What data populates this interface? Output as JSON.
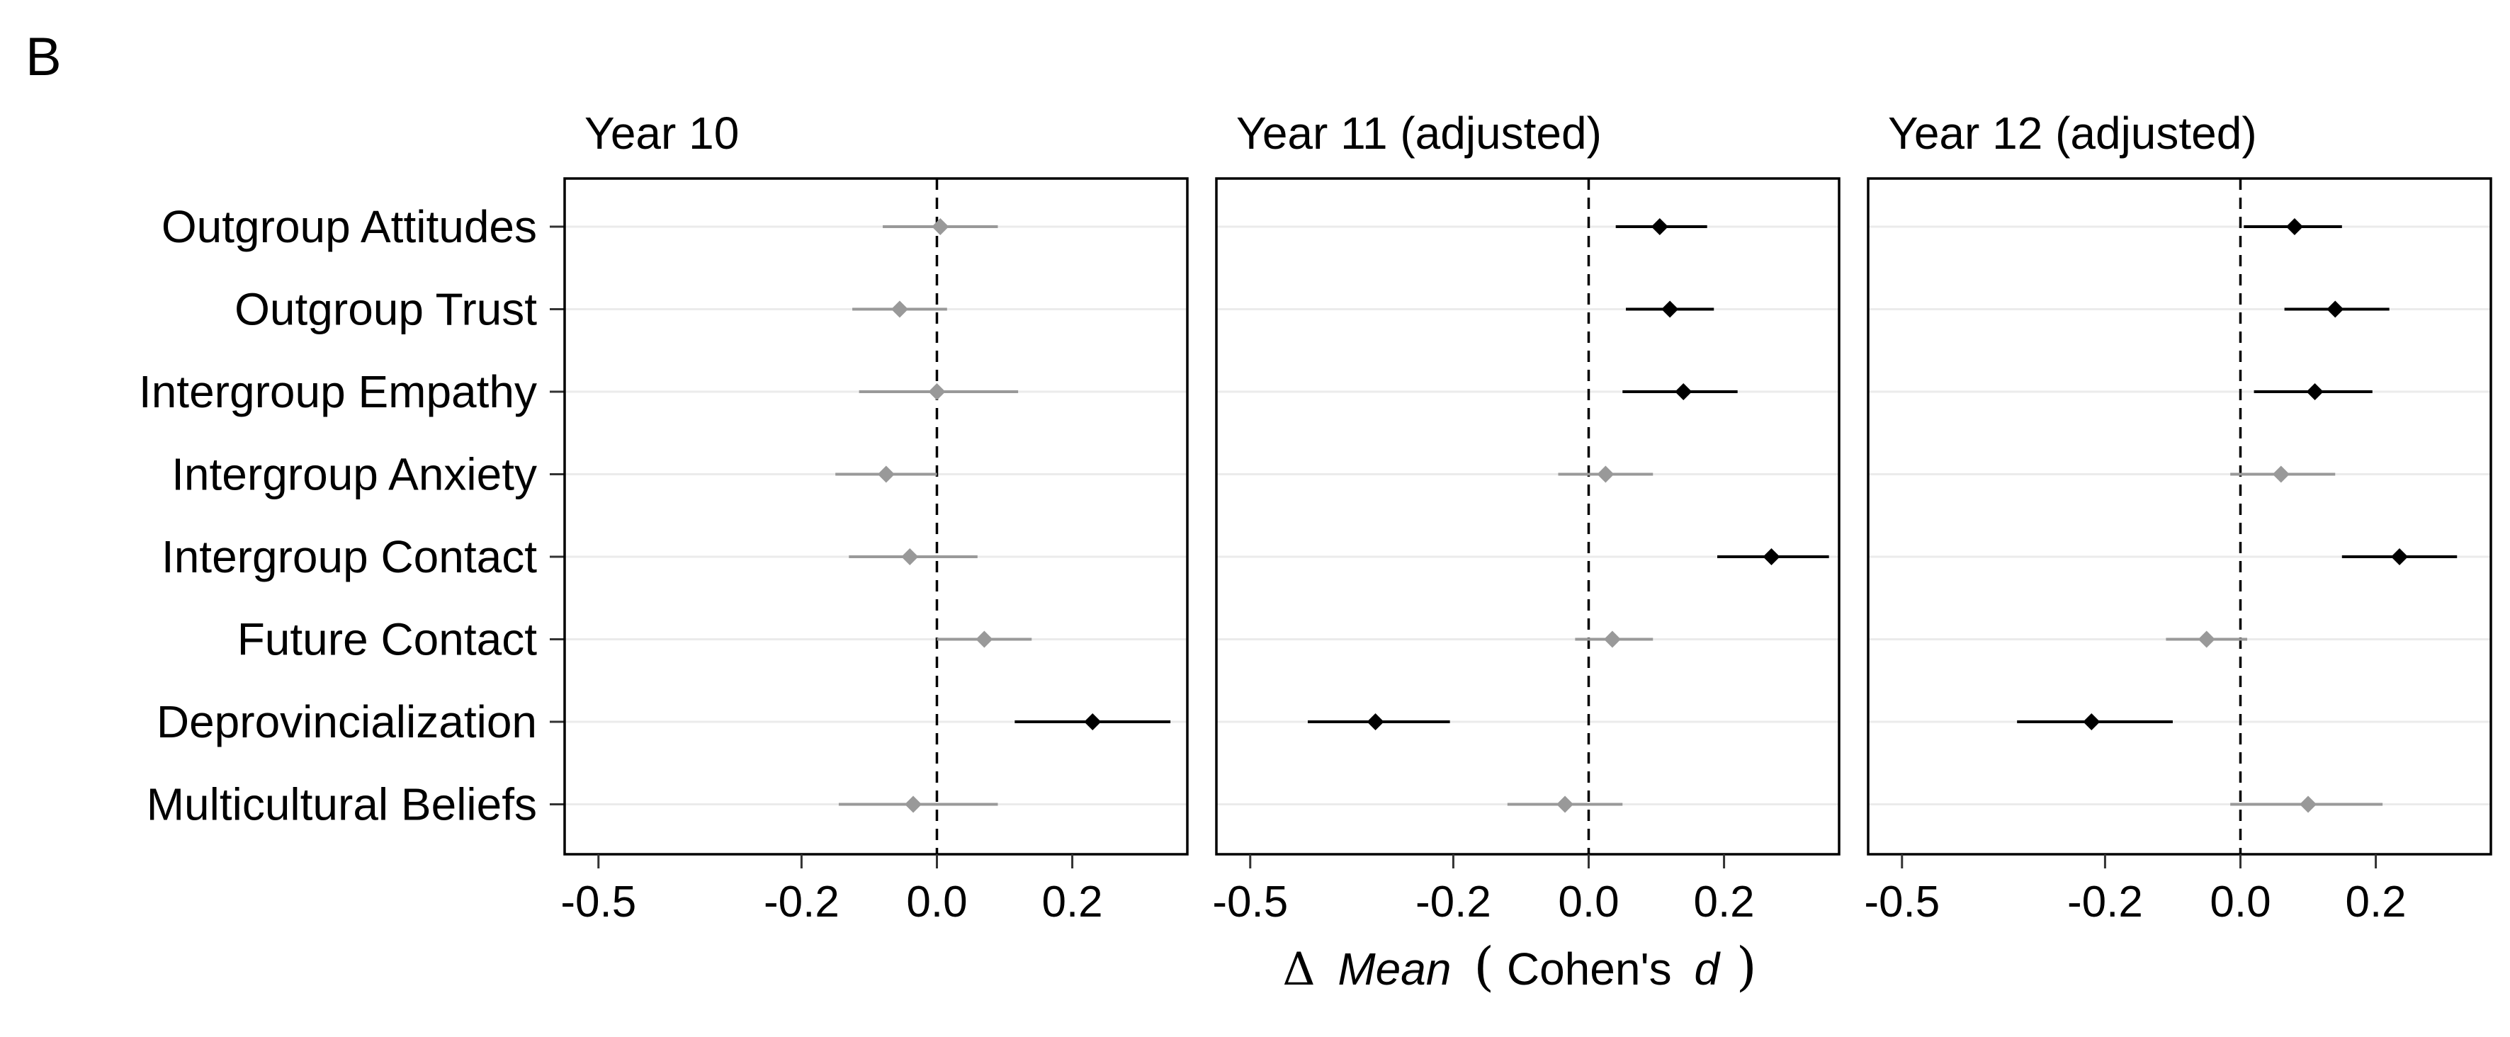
{
  "panel_label": "B",
  "chart_data": {
    "type": "forest",
    "x_label": {
      "symbol": "Δ",
      "mean": "Mean",
      "open_paren": "(",
      "cohens": "Cohen's",
      "d": "d",
      "close_paren": ")"
    },
    "categories": [
      "Outgroup Attitudes",
      "Outgroup Trust",
      "Intergroup Empathy",
      "Intergroup Anxiety",
      "Intergroup Contact",
      "Future Contact",
      "Deprovincialization",
      "Multicultural Beliefs"
    ],
    "x_ticks": [
      "-0.5",
      "-0.2",
      "0.0",
      "0.2"
    ],
    "xlim": [
      -0.55,
      0.37
    ],
    "reference_line": 0,
    "grid": "horizontal",
    "colors": {
      "significant": "#000000",
      "nonsignificant": "#999999",
      "gridline": "#ebebeb",
      "reference": "#000000"
    },
    "panels": [
      {
        "title": "Year 10",
        "estimates": [
          {
            "category": "Outgroup Attitudes",
            "est": 0.005,
            "lo": -0.08,
            "hi": 0.09,
            "significant": false
          },
          {
            "category": "Outgroup Trust",
            "est": -0.055,
            "lo": -0.125,
            "hi": 0.015,
            "significant": false
          },
          {
            "category": "Intergroup Empathy",
            "est": 0.0,
            "lo": -0.115,
            "hi": 0.12,
            "significant": false
          },
          {
            "category": "Intergroup Anxiety",
            "est": -0.075,
            "lo": -0.15,
            "hi": 0.0,
            "significant": false
          },
          {
            "category": "Intergroup Contact",
            "est": -0.04,
            "lo": -0.13,
            "hi": 0.06,
            "significant": false
          },
          {
            "category": "Future Contact",
            "est": 0.07,
            "lo": 0.0,
            "hi": 0.14,
            "significant": false
          },
          {
            "category": "Deprovincialization",
            "est": 0.23,
            "lo": 0.115,
            "hi": 0.345,
            "significant": true
          },
          {
            "category": "Multicultural Beliefs",
            "est": -0.035,
            "lo": -0.145,
            "hi": 0.09,
            "significant": false
          }
        ]
      },
      {
        "title": "Year 11 (adjusted)",
        "estimates": [
          {
            "category": "Outgroup Attitudes",
            "est": 0.105,
            "lo": 0.04,
            "hi": 0.175,
            "significant": true
          },
          {
            "category": "Outgroup Trust",
            "est": 0.12,
            "lo": 0.055,
            "hi": 0.185,
            "significant": true
          },
          {
            "category": "Intergroup Empathy",
            "est": 0.14,
            "lo": 0.05,
            "hi": 0.22,
            "significant": true
          },
          {
            "category": "Intergroup Anxiety",
            "est": 0.025,
            "lo": -0.045,
            "hi": 0.095,
            "significant": false
          },
          {
            "category": "Intergroup Contact",
            "est": 0.27,
            "lo": 0.19,
            "hi": 0.355,
            "significant": true
          },
          {
            "category": "Future Contact",
            "est": 0.035,
            "lo": -0.02,
            "hi": 0.095,
            "significant": false
          },
          {
            "category": "Deprovincialization",
            "est": -0.315,
            "lo": -0.415,
            "hi": -0.205,
            "significant": true
          },
          {
            "category": "Multicultural Beliefs",
            "est": -0.035,
            "lo": -0.12,
            "hi": 0.05,
            "significant": false
          }
        ]
      },
      {
        "title": "Year 12 (adjusted)",
        "estimates": [
          {
            "category": "Outgroup Attitudes",
            "est": 0.08,
            "lo": 0.005,
            "hi": 0.15,
            "significant": true
          },
          {
            "category": "Outgroup Trust",
            "est": 0.14,
            "lo": 0.065,
            "hi": 0.22,
            "significant": true
          },
          {
            "category": "Intergroup Empathy",
            "est": 0.11,
            "lo": 0.02,
            "hi": 0.195,
            "significant": true
          },
          {
            "category": "Intergroup Anxiety",
            "est": 0.06,
            "lo": -0.015,
            "hi": 0.14,
            "significant": false
          },
          {
            "category": "Intergroup Contact",
            "est": 0.235,
            "lo": 0.15,
            "hi": 0.32,
            "significant": true
          },
          {
            "category": "Future Contact",
            "est": -0.05,
            "lo": -0.11,
            "hi": 0.01,
            "significant": false
          },
          {
            "category": "Deprovincialization",
            "est": -0.22,
            "lo": -0.33,
            "hi": -0.1,
            "significant": true
          },
          {
            "category": "Multicultural Beliefs",
            "est": 0.1,
            "lo": -0.015,
            "hi": 0.21,
            "significant": false
          }
        ]
      }
    ]
  }
}
